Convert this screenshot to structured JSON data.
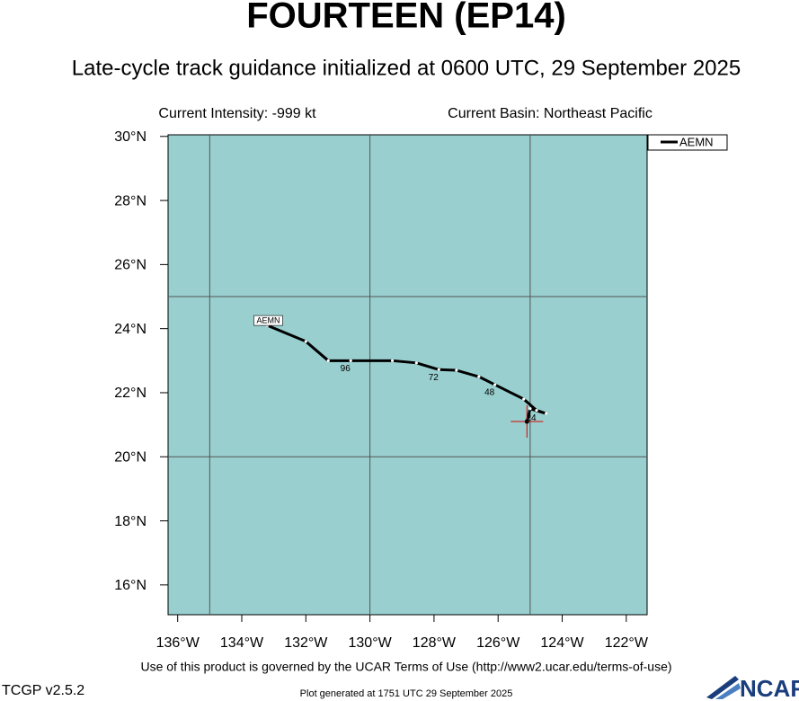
{
  "chart_data": {
    "type": "track",
    "title": "FOURTEEN (EP14)",
    "subtitle": "Late-cycle track guidance initialized at 0600 UTC, 29 September 2025",
    "intensity": "Current Intensity: -999 kt",
    "basin": "Current Basin: Northeast Pacific",
    "terms": "Use of this product is governed by the UCAR Terms of Use (http://www2.ucar.edu/terms-of-use)",
    "version": "TCGP v2.5.2",
    "generated": "Plot generated at 1751 UTC   29 September 2025",
    "logo": "NCAR",
    "xlim": [
      -136.3,
      -121.35
    ],
    "ylim": [
      15.07,
      30.05
    ],
    "xticks": [
      {
        "value": -136,
        "label": "136°W"
      },
      {
        "value": -134,
        "label": "134°W"
      },
      {
        "value": -132,
        "label": "132°W"
      },
      {
        "value": -130,
        "label": "130°W"
      },
      {
        "value": -128,
        "label": "128°W"
      },
      {
        "value": -126,
        "label": "126°W"
      },
      {
        "value": -124,
        "label": "124°W"
      },
      {
        "value": -122,
        "label": "122°W"
      }
    ],
    "yticks": [
      {
        "value": 16,
        "label": "16°N"
      },
      {
        "value": 18,
        "label": "18°N"
      },
      {
        "value": 20,
        "label": "20°N"
      },
      {
        "value": 22,
        "label": "22°N"
      },
      {
        "value": 24,
        "label": "24°N"
      },
      {
        "value": 26,
        "label": "26°N"
      },
      {
        "value": 28,
        "label": "28°N"
      },
      {
        "value": 30,
        "label": "30°N"
      }
    ],
    "grid_lons": [
      -135,
      -130,
      -125
    ],
    "grid_lats": [
      20,
      25
    ],
    "current": {
      "lon": -125.1,
      "lat": 21.1
    },
    "series": [
      {
        "name": "AEMN",
        "color": "#000000",
        "x": [
          -125.1,
          -125.0,
          -124.5,
          -124.8,
          -125.2,
          -126.1,
          -126.6,
          -127.3,
          -127.85,
          -128.55,
          -129.3,
          -130.6,
          -131.3,
          -132.0,
          -133.2
        ],
        "values": [
          21.1,
          21.5,
          21.35,
          21.45,
          21.8,
          22.25,
          22.5,
          22.7,
          22.72,
          22.93,
          23.0,
          23.0,
          23.0,
          23.6,
          24.1
        ],
        "hour_labels": [
          null,
          null,
          null,
          "24",
          null,
          "48",
          null,
          null,
          "72",
          null,
          null,
          "96",
          null,
          null,
          null
        ]
      }
    ]
  }
}
